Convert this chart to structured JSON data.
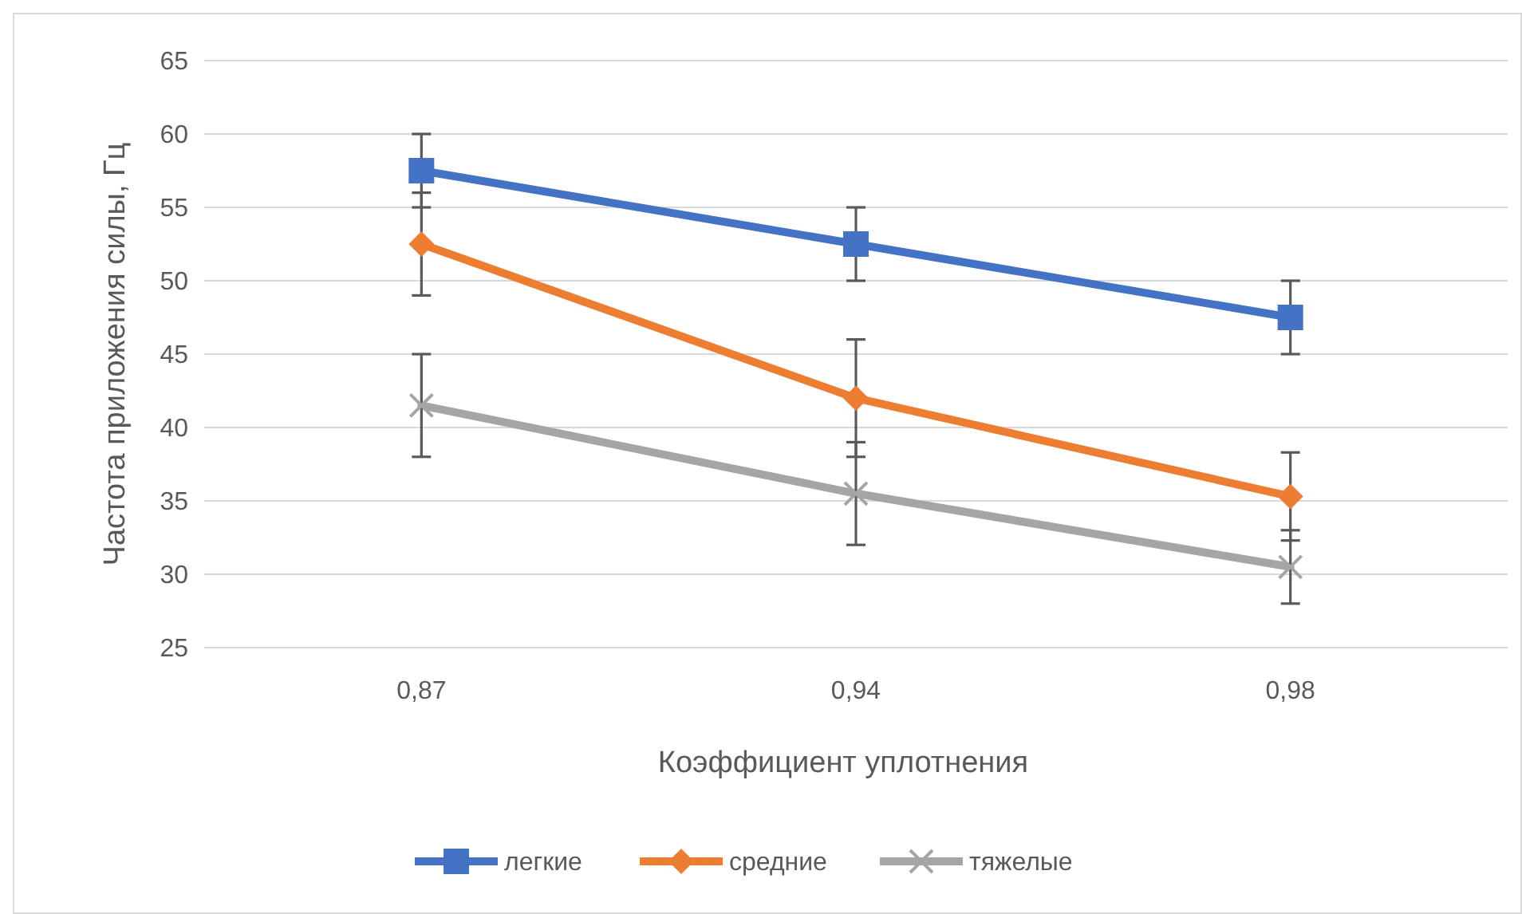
{
  "chart_data": {
    "type": "line",
    "xlabel": "Коэффициент уплотнения",
    "ylabel": "Частота приложения силы, Гц",
    "categories": [
      "0,87",
      "0,94",
      "0,98"
    ],
    "ylim": [
      25,
      65
    ],
    "yticks": [
      25,
      30,
      35,
      40,
      45,
      50,
      55,
      60,
      65
    ],
    "grid": "y",
    "legend": "bottom",
    "line_style": "solid",
    "series": [
      {
        "name": "легкие",
        "color": "#4472c4",
        "marker": "square",
        "values": [
          57.5,
          52.5,
          47.5
        ],
        "errors": [
          2.5,
          2.5,
          2.5
        ]
      },
      {
        "name": "средние",
        "color": "#ed7d31",
        "marker": "diamond",
        "values": [
          52.5,
          42,
          35.3
        ],
        "errors": [
          3.5,
          4,
          3
        ]
      },
      {
        "name": "тяжелые",
        "color": "#a5a5a5",
        "marker": "cross",
        "values": [
          41.5,
          35.5,
          30.5
        ],
        "errors": [
          3.5,
          3.5,
          2.5
        ]
      }
    ]
  }
}
